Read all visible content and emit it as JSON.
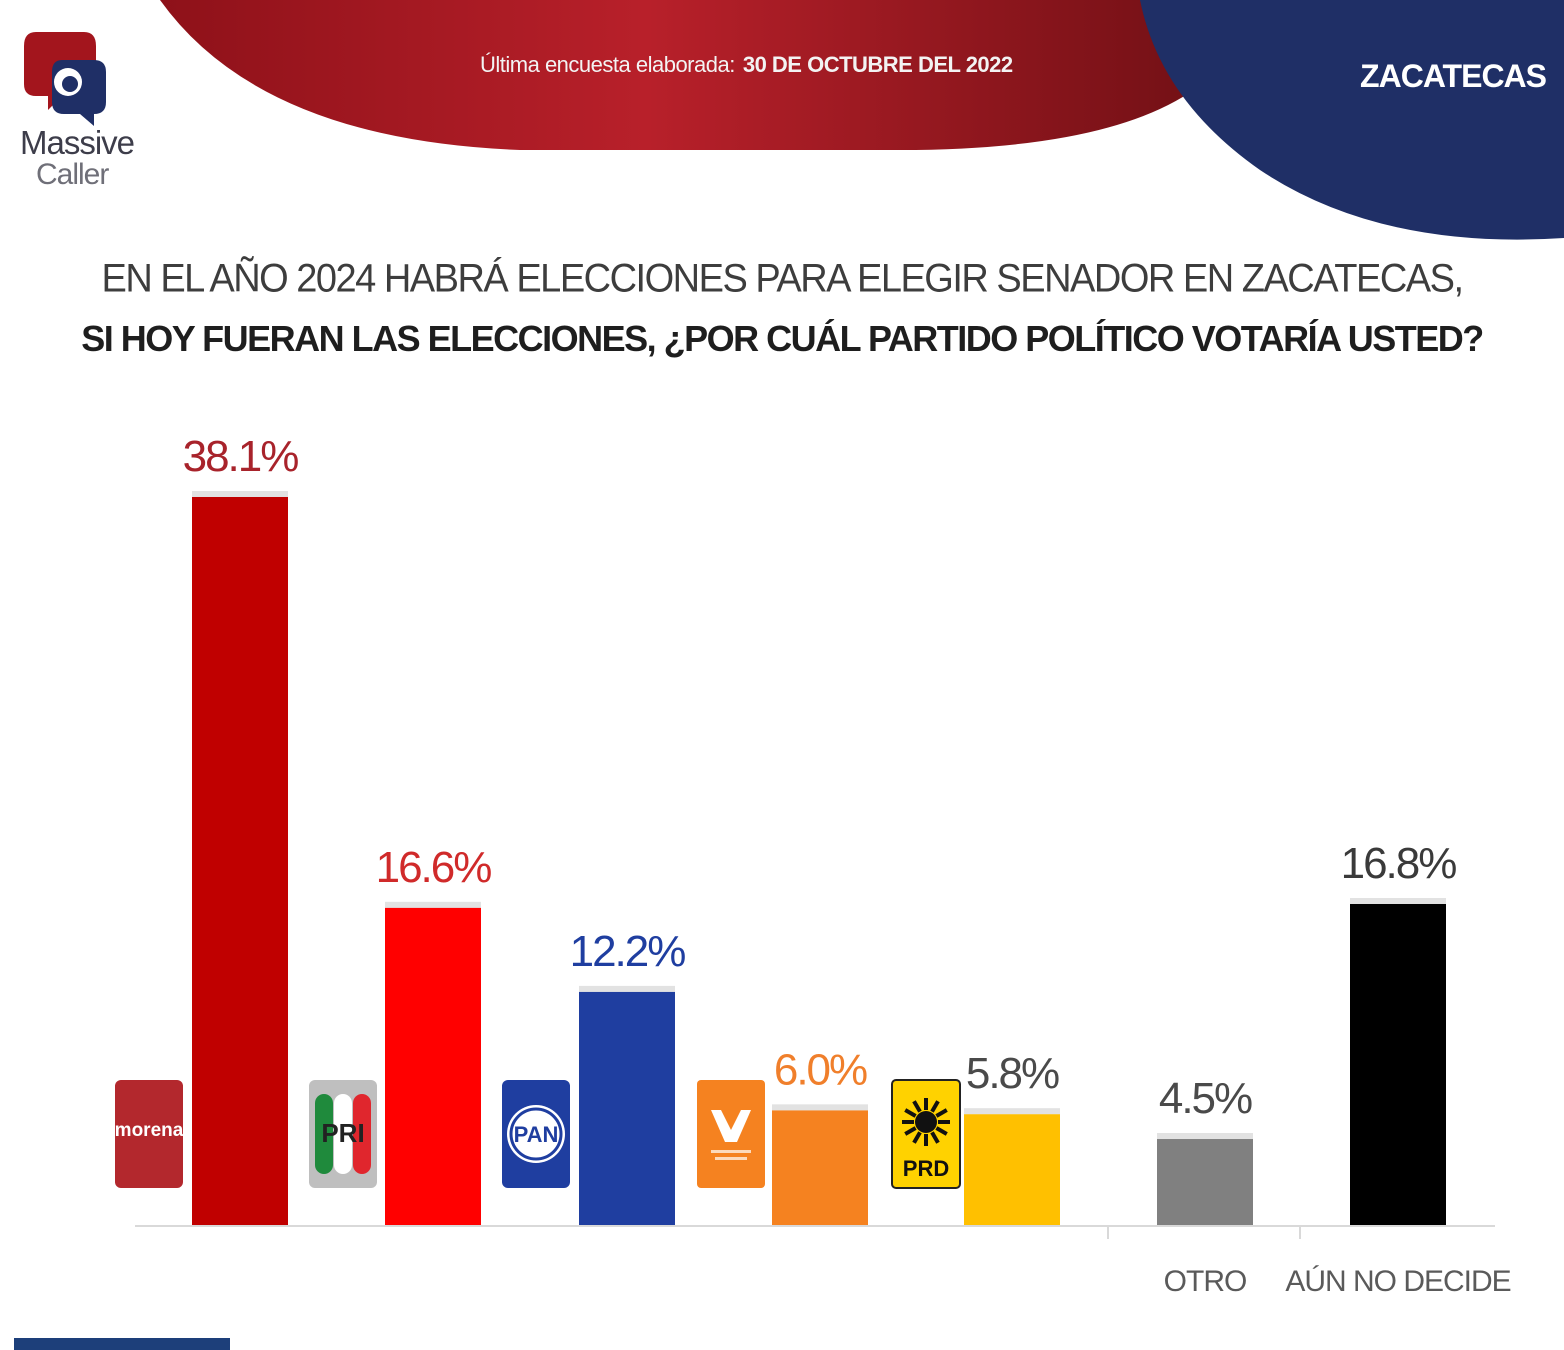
{
  "header": {
    "survey_label": "Última encuesta elaborada:",
    "survey_date": "30 DE OCTUBRE DEL 2022",
    "state": "ZACATECAS"
  },
  "logo": {
    "word1": "Massive",
    "word2": "Caller"
  },
  "colors": {
    "header_red": "#a3151d",
    "header_blue": "#1f2f66",
    "morena": "#c00000",
    "pri": "#ff0000",
    "pan": "#1f3ea0",
    "mc": "#f58220",
    "prd": "#ffc000",
    "otro": "#808080",
    "no_decide": "#000000"
  },
  "question": {
    "line1": "EN EL AÑO 2024 HABRÁ ELECCIONES PARA ELEGIR SENADOR EN ZACATECAS,",
    "line2": "SI HOY FUERAN LAS ELECCIONES, ¿POR CUÁL PARTIDO POLÍTICO VOTARÍA USTED?"
  },
  "chart_data": {
    "type": "bar",
    "categories": [
      "morena",
      "PRI",
      "PAN",
      "MC",
      "PRD",
      "OTRO",
      "AÚN NO DECIDE"
    ],
    "values": [
      38.1,
      16.6,
      12.2,
      6.0,
      5.8,
      4.5,
      16.8
    ],
    "labels": [
      "38.1%",
      "16.6%",
      "12.2%",
      "6.0%",
      "5.8%",
      "4.5%",
      "16.8%"
    ],
    "axis_labels": [
      "",
      "",
      "",
      "",
      "",
      "OTRO",
      "AÚN NO DECIDE"
    ],
    "bar_colors": [
      "#c00000",
      "#ff0000",
      "#1f3ea0",
      "#f58220",
      "#ffc000",
      "#808080",
      "#000000"
    ],
    "label_colors": [
      "#a8232b",
      "#d02a2a",
      "#1f3ea0",
      "#f07f2b",
      "#4a4a4a",
      "#4a4a4a",
      "#3a3a3a"
    ],
    "logo_icons": [
      "morena-logo",
      "pri-logo",
      "pan-logo",
      "mc-logo",
      "prd-logo",
      "",
      ""
    ],
    "logo_texts": [
      "morena",
      "PRI",
      "PAN",
      "",
      "PRD",
      "",
      ""
    ],
    "ylim": [
      0,
      40
    ],
    "grid": false,
    "legend": "none"
  }
}
